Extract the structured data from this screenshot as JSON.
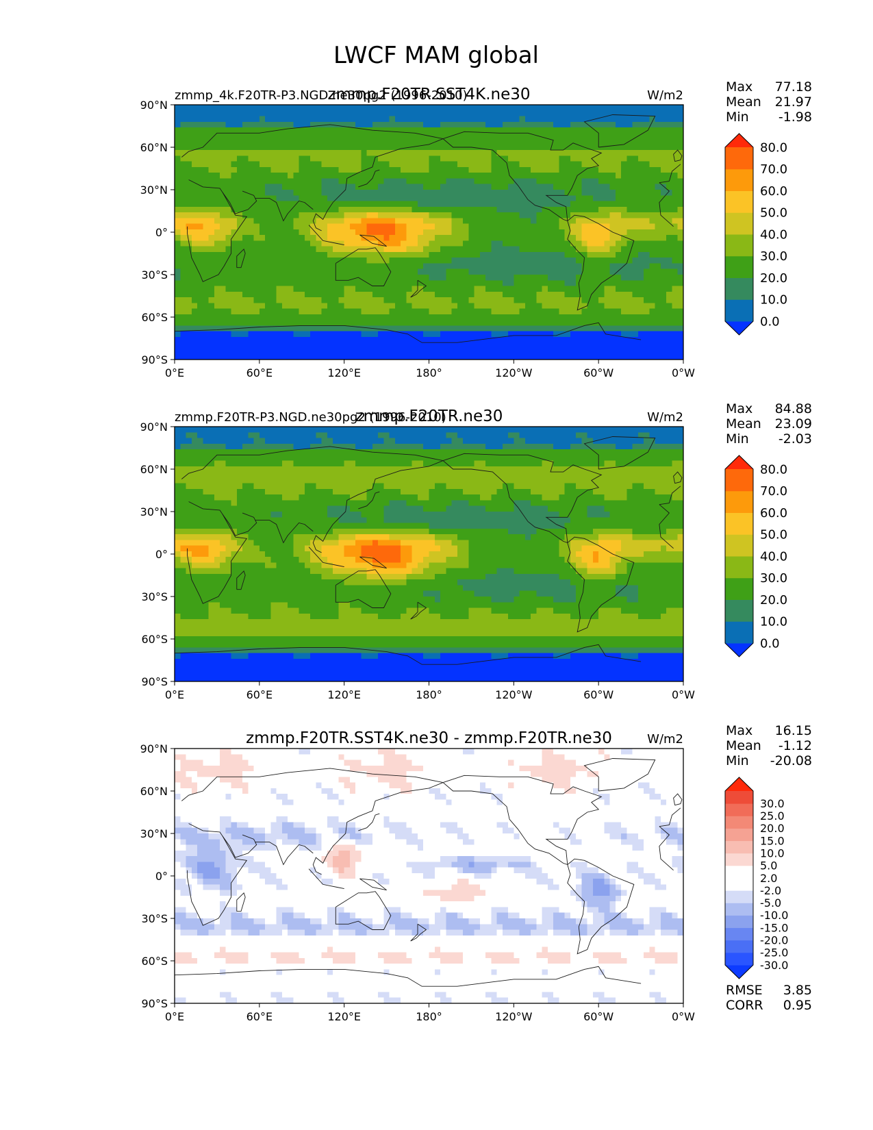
{
  "figure": {
    "title": "LWCF MAM global"
  },
  "colors": {
    "frame": "#000000",
    "coast": "#1a1a1a",
    "field_palette": [
      "#0433ff",
      "#0a6fb5",
      "#358a5e",
      "#3fa017",
      "#8ab816",
      "#cfc422",
      "#fbc326",
      "#fd9a0b",
      "#fe690b",
      "#ff2a0a"
    ],
    "diff_palette": [
      "#0d3bff",
      "#2a55ff",
      "#4a6ff5",
      "#6886f2",
      "#8ba2ee",
      "#adbdf1",
      "#d5dcf7",
      "#ffffff",
      "#ffffff",
      "#fbd8d2",
      "#f8bdb2",
      "#f5a293",
      "#f38976",
      "#f16c58",
      "#ee4c38",
      "#ff2a0a"
    ]
  },
  "chart_data": [
    {
      "type": "heatmap",
      "kind": "field",
      "title_left": "zmmp_4k.F20TR-P3.NGD.ne30pg2 (1996-2010)",
      "title_center": "zmmp.F20TR.SST4K.ne30",
      "units": "W/m2",
      "stats": [
        {
          "label": "Max",
          "value": "77.18"
        },
        {
          "label": "Mean",
          "value": "21.97"
        },
        {
          "label": "Min",
          "value": "-1.98"
        }
      ],
      "x_ticks": [
        "0°E",
        "60°E",
        "120°E",
        "180°",
        "120°W",
        "60°W",
        "0°W"
      ],
      "y_ticks": [
        "90°N",
        "60°N",
        "30°N",
        "0°",
        "30°S",
        "60°S",
        "90°S"
      ],
      "colorbar": {
        "levels": [
          0,
          10,
          20,
          30,
          40,
          50,
          60,
          70,
          80
        ],
        "labels": [
          "80.0",
          "70.0",
          "60.0",
          "50.0",
          "40.0",
          "30.0",
          "20.0",
          "10.0",
          "0.0"
        ],
        "extend": "both"
      },
      "xlim": [
        0,
        360
      ],
      "ylim": [
        -90,
        90
      ],
      "scale": 1.0
    },
    {
      "type": "heatmap",
      "kind": "field",
      "title_left": "zmmp.F20TR-P3.NGD.ne30pg2 (1996-2010)",
      "title_center": "zmmp.F20TR.ne30",
      "units": "W/m2",
      "stats": [
        {
          "label": "Max",
          "value": "84.88"
        },
        {
          "label": "Mean",
          "value": "23.09"
        },
        {
          "label": "Min",
          "value": "-2.03"
        }
      ],
      "x_ticks": [
        "0°E",
        "60°E",
        "120°E",
        "180°",
        "120°W",
        "60°W",
        "0°W"
      ],
      "y_ticks": [
        "90°N",
        "60°N",
        "30°N",
        "0°",
        "30°S",
        "60°S",
        "90°S"
      ],
      "colorbar": {
        "levels": [
          0,
          10,
          20,
          30,
          40,
          50,
          60,
          70,
          80
        ],
        "labels": [
          "80.0",
          "70.0",
          "60.0",
          "50.0",
          "40.0",
          "30.0",
          "20.0",
          "10.0",
          "0.0"
        ],
        "extend": "both"
      },
      "xlim": [
        0,
        360
      ],
      "ylim": [
        -90,
        90
      ],
      "scale": 1.06
    },
    {
      "type": "heatmap",
      "kind": "diff",
      "title_left": "",
      "title_center": "zmmp.F20TR.SST4K.ne30 - zmmp.F20TR.ne30",
      "units": "W/m2",
      "stats": [
        {
          "label": "Max",
          "value": "16.15"
        },
        {
          "label": "Mean",
          "value": "-1.12"
        },
        {
          "label": "Min",
          "value": "-20.08"
        }
      ],
      "extra_stats": [
        {
          "label": "RMSE",
          "value": "3.85"
        },
        {
          "label": "CORR",
          "value": "0.95"
        }
      ],
      "x_ticks": [
        "0°E",
        "60°E",
        "120°E",
        "180°",
        "120°W",
        "60°W",
        "0°W"
      ],
      "y_ticks": [
        "90°N",
        "60°N",
        "30°N",
        "0°",
        "30°S",
        "60°S",
        "90°S"
      ],
      "colorbar": {
        "levels": [
          -30,
          -25,
          -20,
          -15,
          -10,
          -5,
          -2,
          2,
          5,
          10,
          15,
          20,
          25,
          30
        ],
        "labels": [
          "30.0",
          "25.0",
          "20.0",
          "15.0",
          "10.0",
          "5.0",
          "2.0",
          "-2.0",
          "-5.0",
          "-10.0",
          "-15.0",
          "-20.0",
          "-25.0",
          "-30.0"
        ],
        "extend": "both"
      },
      "xlim": [
        0,
        360
      ],
      "ylim": [
        -90,
        90
      ],
      "scale": 1.0
    }
  ]
}
